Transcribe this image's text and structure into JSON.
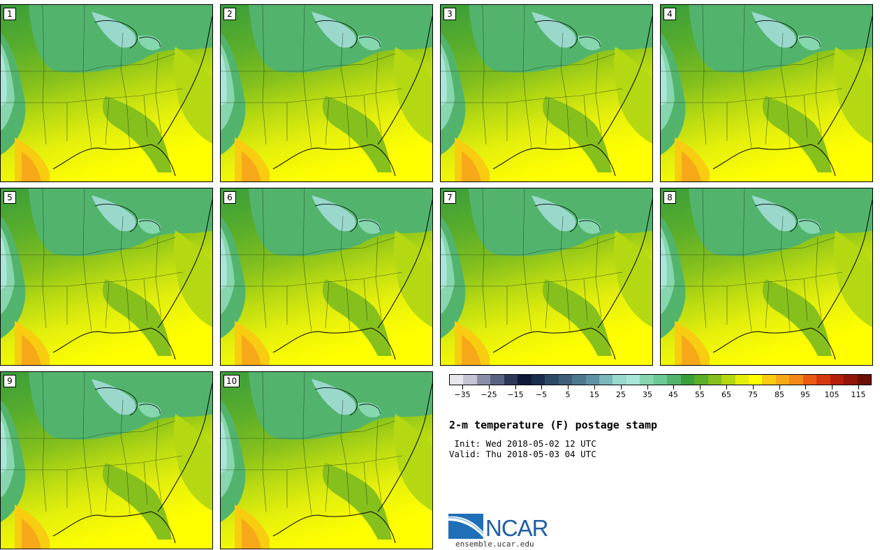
{
  "members": [
    "1",
    "2",
    "3",
    "4",
    "5",
    "6",
    "7",
    "8",
    "9",
    "10"
  ],
  "colorbar": {
    "colors": [
      "#e6e6ec",
      "#c4c4d4",
      "#8a8ea8",
      "#5a6482",
      "#2c3856",
      "#10183a",
      "#1a2c4e",
      "#2c4a66",
      "#3d5f7a",
      "#4e7890",
      "#5e93a6",
      "#7ab6ba",
      "#9ad8cc",
      "#a9e6d8",
      "#86d6ae",
      "#6cc894",
      "#52b46c",
      "#3a9e3c",
      "#5aae2a",
      "#86c01c",
      "#b4d812",
      "#e2ee0c",
      "#ffff00",
      "#f8cc10",
      "#f6a818",
      "#f48818",
      "#ea5a12",
      "#d43a10",
      "#b41e0c",
      "#901408",
      "#6a1006"
    ],
    "tick_labels": [
      "−35",
      "−25",
      "−15",
      "−5",
      "5",
      "15",
      "25",
      "35",
      "45",
      "55",
      "65",
      "75",
      "85",
      "95",
      "105",
      "115"
    ],
    "min": -40,
    "max": 120
  },
  "title": "2-m temperature (F) postage stamp",
  "init": " Init: Wed 2018-05-02 12 UTC",
  "valid": "Valid: Thu 2018-05-03 04 UTC",
  "logo": {
    "text": "NCAR",
    "site": "ensemble.ucar.edu"
  }
}
